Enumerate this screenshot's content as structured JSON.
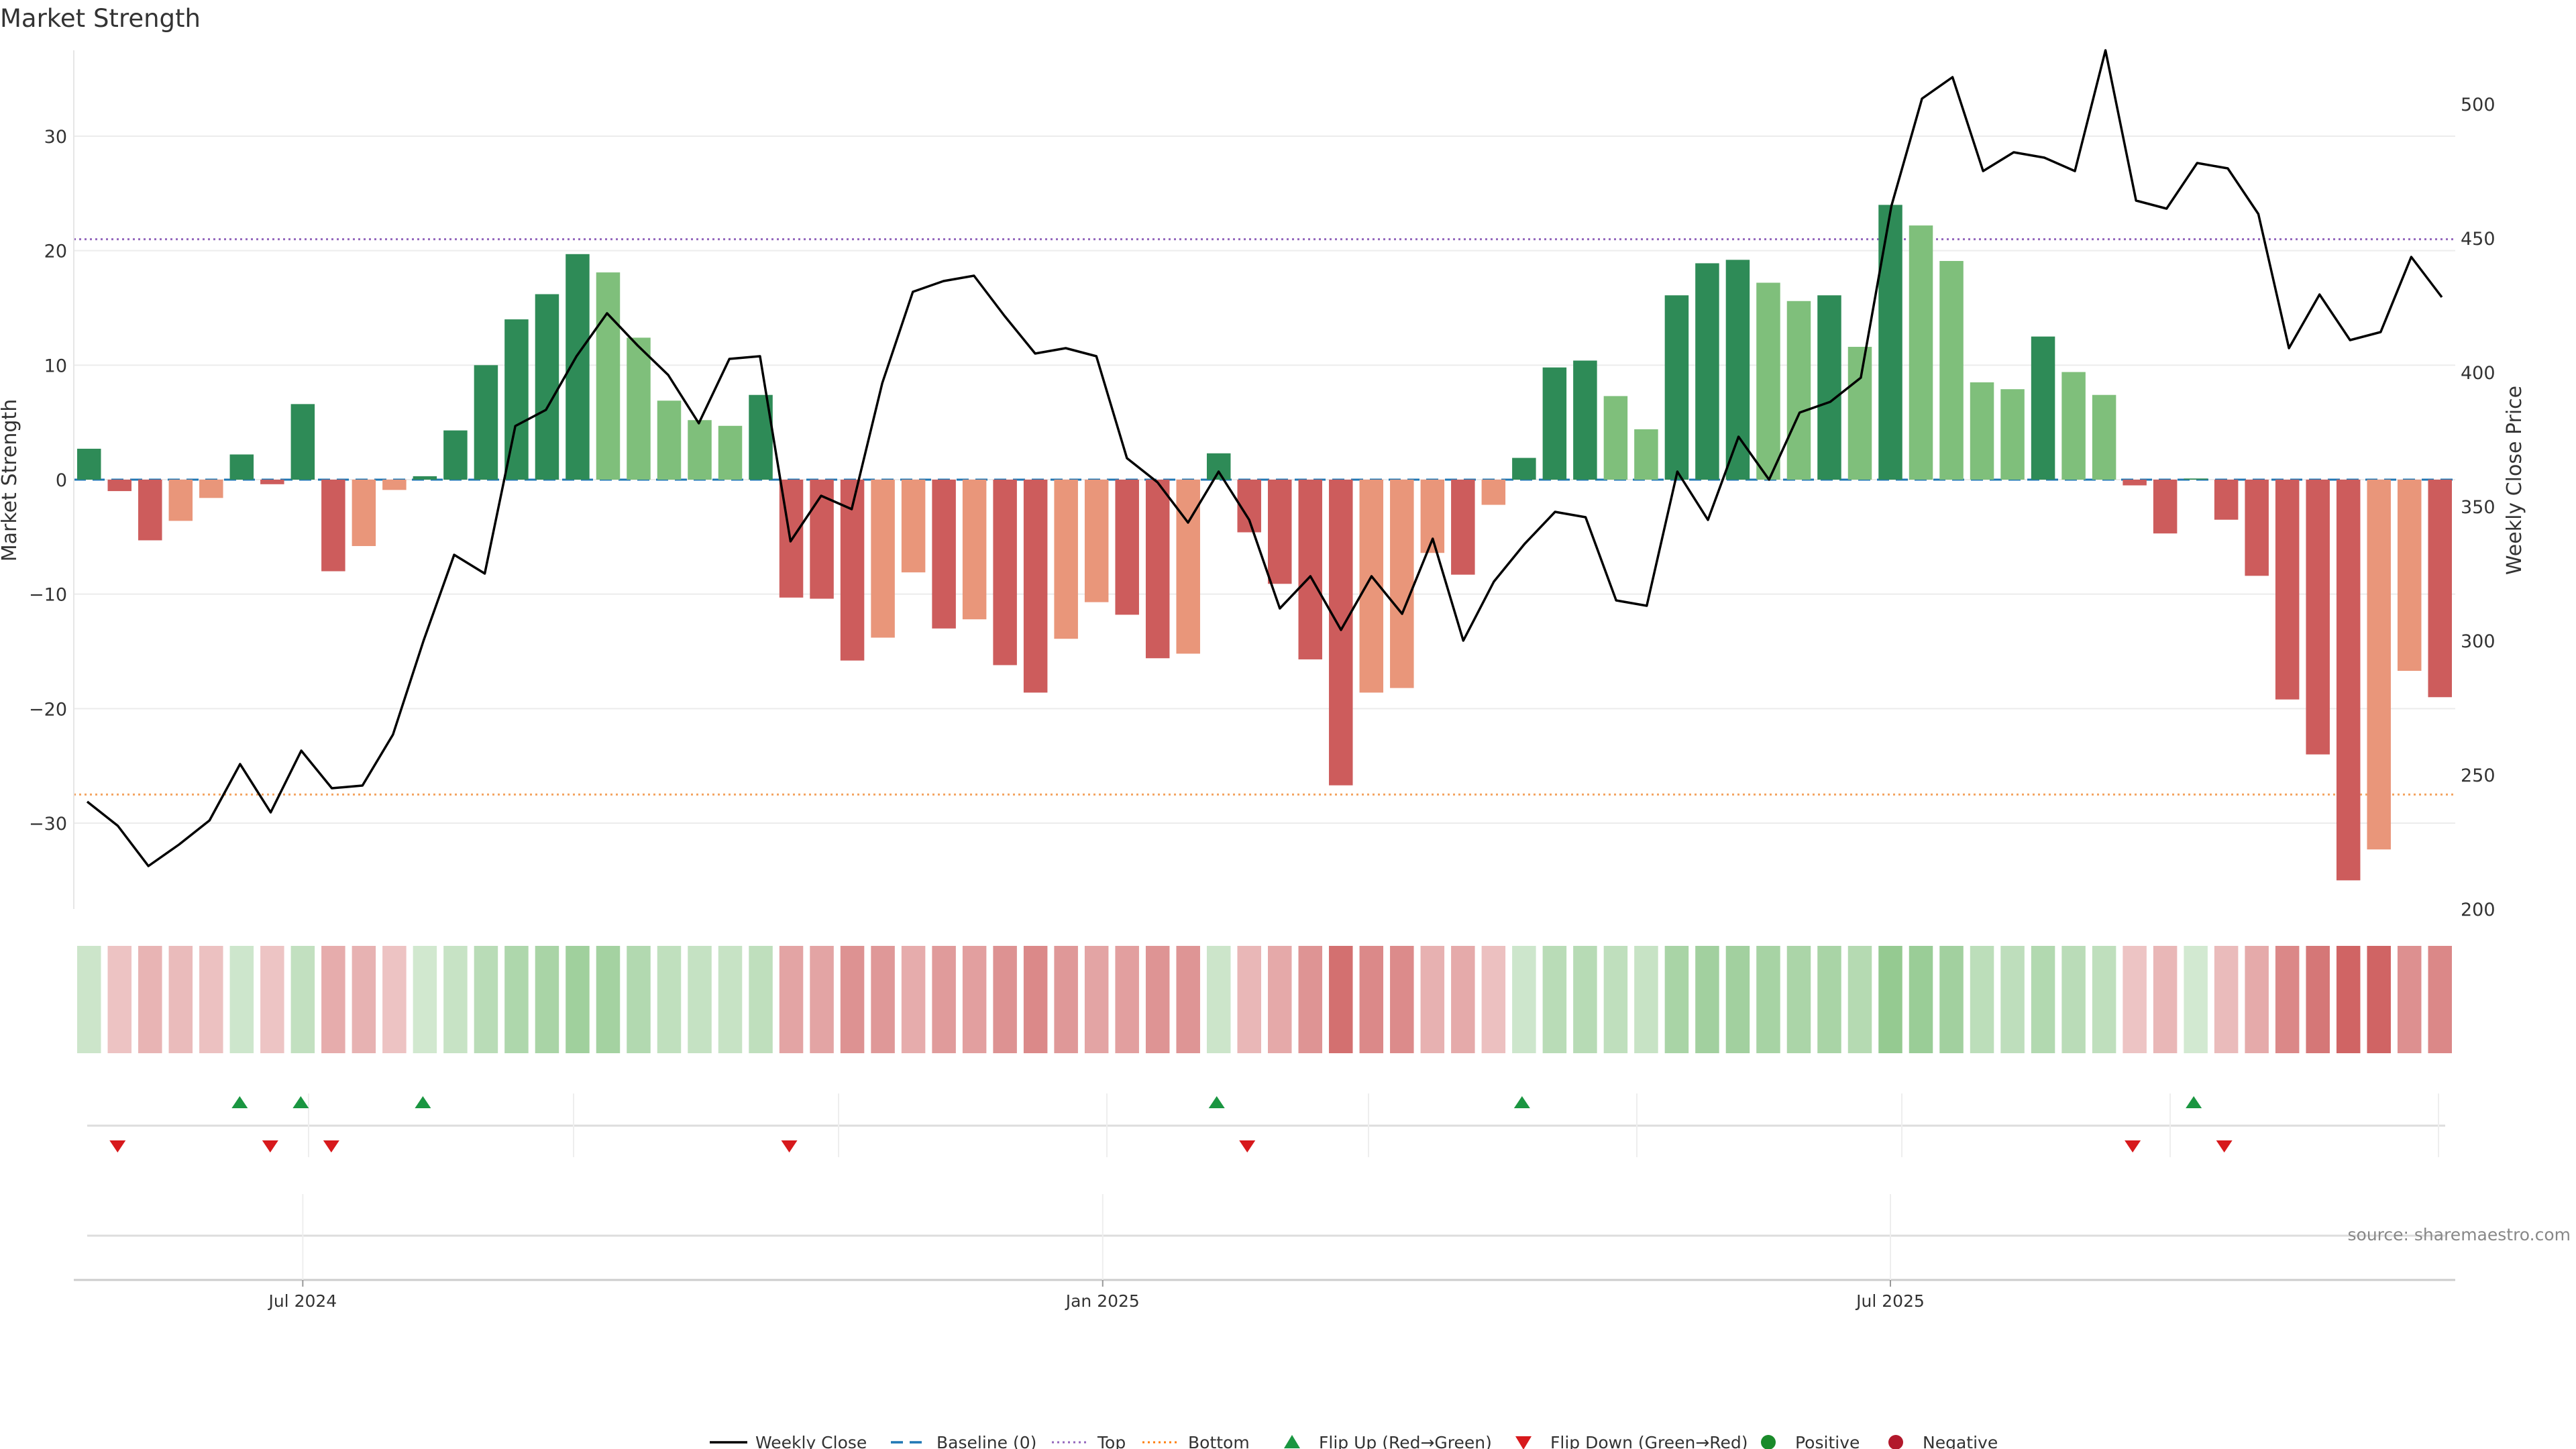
{
  "chart_data": {
    "type": "bar",
    "title": "Market Strength",
    "ylabel_left": "Market Strength",
    "ylabel_right": "Weekly Close Price",
    "ylim_left": [
      -37.5,
      37.5
    ],
    "ylim_right": [
      200,
      520
    ],
    "left_ticks": [
      30,
      20,
      10,
      0,
      -10,
      -20,
      -30
    ],
    "left_tick_labels": [
      "30",
      "20",
      "10",
      "0",
      "−10",
      "−20",
      "−30"
    ],
    "right_ticks": [
      500,
      450,
      400,
      350,
      300,
      250,
      200
    ],
    "right_tick_labels": [
      "500",
      "450",
      "400",
      "350",
      "300",
      "250",
      "200"
    ],
    "x_tick_labels": [
      {
        "label": "Jul 2024",
        "week": 7.5
      },
      {
        "label": "Jan 2025",
        "week": 33.7
      },
      {
        "label": "Jul 2025",
        "week": 59.5
      }
    ],
    "top_level": 21,
    "bottom_level": -27.5,
    "baseline": 0,
    "strength": [
      2.7,
      -1,
      -5.3,
      -3.6,
      -1.6,
      2.2,
      -0.4,
      6.6,
      -8,
      -5.8,
      -0.9,
      0.3,
      4.3,
      10,
      14,
      16.2,
      19.7,
      18.1,
      12.4,
      6.9,
      5.2,
      4.7,
      7.4,
      -10.3,
      -10.4,
      -15.8,
      -13.8,
      -8.1,
      -13,
      -12.2,
      -16.2,
      -18.6,
      -13.9,
      -10.7,
      -11.8,
      -15.6,
      -15.2,
      2.3,
      -4.6,
      -9.1,
      -15.7,
      -26.7,
      -18.6,
      -18.2,
      -6.4,
      -8.3,
      -2.2,
      1.9,
      9.8,
      10.4,
      7.3,
      4.4,
      16.1,
      18.9,
      19.2,
      17.2,
      15.6,
      16.1,
      11.6,
      24,
      22.2,
      19.1,
      8.5,
      7.9,
      12.5,
      9.4,
      7.4,
      -0.5,
      -4.7,
      0.1,
      -3.5,
      -8.4,
      -19.2,
      -24,
      -35,
      -32.3,
      -16.7,
      -19
    ],
    "weekly_close": [
      240,
      231,
      216,
      224,
      233,
      254,
      236,
      259,
      245,
      246,
      265,
      300,
      332,
      325,
      380,
      386,
      406,
      422,
      410,
      399,
      381,
      405,
      406,
      337,
      354,
      349,
      396,
      430,
      434,
      436,
      421,
      407,
      409,
      406,
      368,
      359,
      344,
      363,
      345,
      312,
      324,
      304,
      324,
      310,
      338,
      300,
      322,
      336,
      348,
      346,
      315,
      313,
      363,
      345,
      376,
      360,
      385,
      389,
      398,
      462,
      502,
      510,
      475,
      482,
      480,
      475,
      520,
      464,
      461,
      478,
      476,
      459,
      409,
      429,
      412,
      415,
      443,
      428
    ],
    "legend": [
      {
        "label": "Weekly Close",
        "symbol": "line",
        "color": "#000000"
      },
      {
        "label": "Baseline (0)",
        "symbol": "dash",
        "color": "#1f77b4"
      },
      {
        "label": "Top",
        "symbol": "dot",
        "color": "#9467bd"
      },
      {
        "label": "Bottom",
        "symbol": "dot",
        "color": "#ff7f0e"
      },
      {
        "label": "Flip Up (Red→Green)",
        "symbol": "tri-up",
        "color": "#1a9641"
      },
      {
        "label": "Flip Down (Green→Red)",
        "symbol": "tri-down",
        "color": "#d7191c"
      },
      {
        "label": "Positive",
        "symbol": "circle",
        "color": "#1a8a2a"
      },
      {
        "label": "Negative",
        "symbol": "circle",
        "color": "#b2182b"
      }
    ],
    "source": "source: sharemaestro.com"
  },
  "colors": {
    "green_dark": "#2e8b57",
    "green_light": "#7fbf7b",
    "red_dark": "#cd5c5c",
    "red_light": "#e9967a",
    "flip_up": "#1a9641",
    "flip_down": "#d7191c"
  }
}
